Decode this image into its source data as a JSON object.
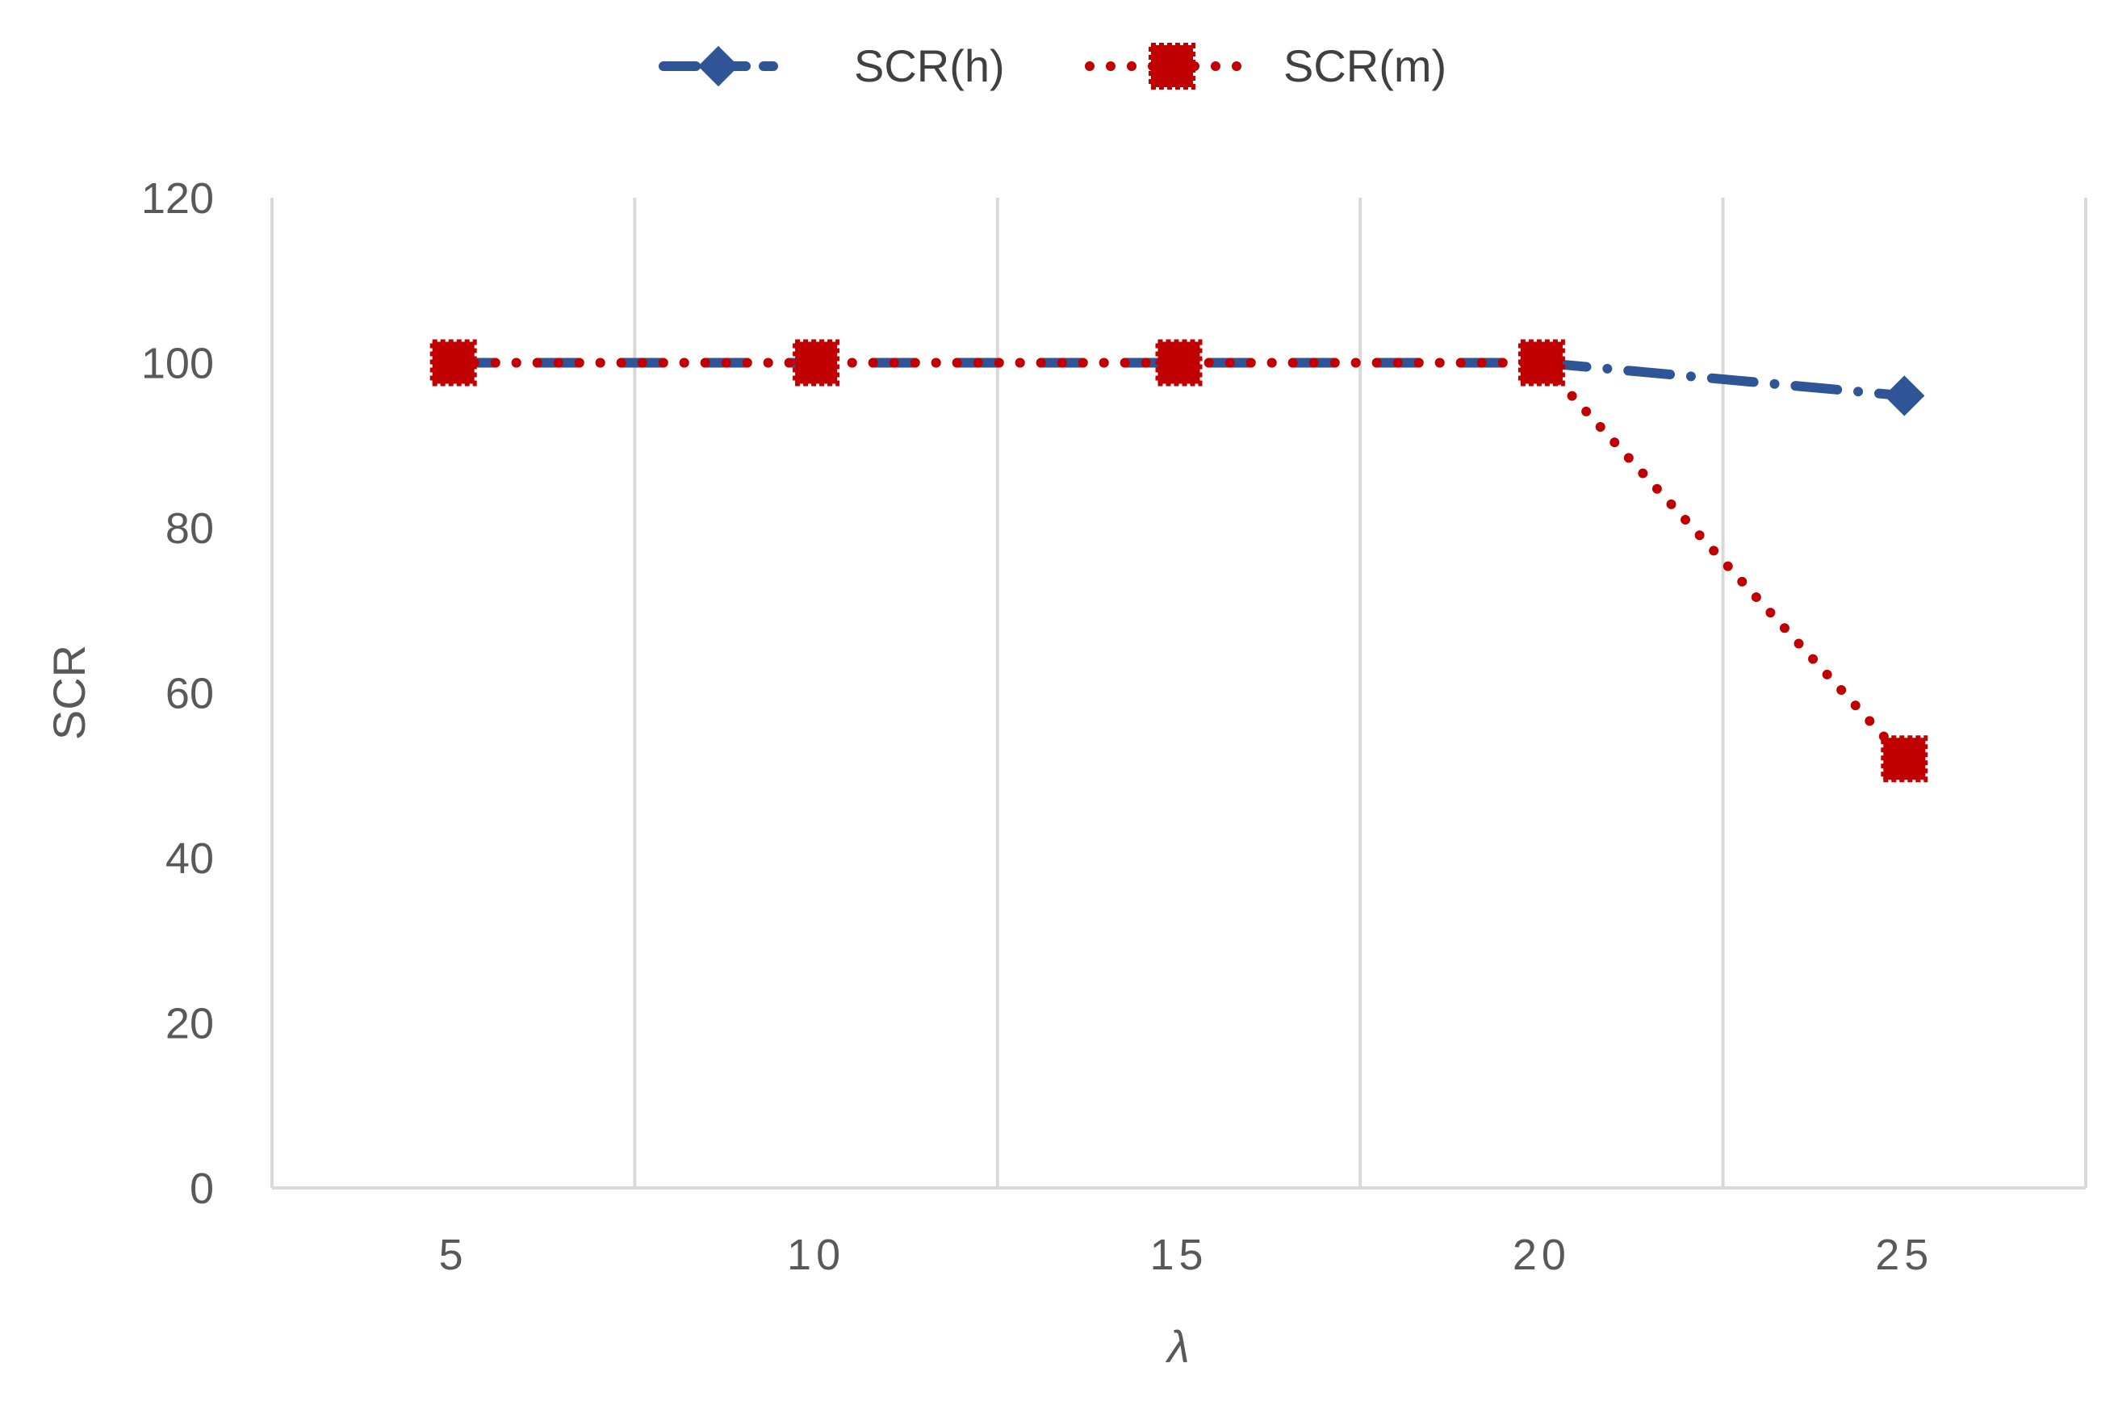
{
  "chart_data": {
    "type": "line",
    "title": "",
    "xlabel": "λ",
    "ylabel": "SCR",
    "categories": [
      "5",
      "10",
      "15",
      "20",
      "25"
    ],
    "ylim": [
      0,
      120
    ],
    "yticks": [
      "0",
      "20",
      "40",
      "60",
      "80",
      "100",
      "120"
    ],
    "grid": "vertical",
    "legend": "top-center",
    "series": [
      {
        "name": "SCR(h)",
        "values": [
          100,
          100,
          100,
          100,
          96
        ],
        "color": "#2F5597",
        "marker": "diamond",
        "line": "dash-dot"
      },
      {
        "name": "SCR(m)",
        "values": [
          100,
          100,
          100,
          100,
          52
        ],
        "color": "#C00000",
        "marker": "square",
        "line": "dotted"
      }
    ]
  }
}
